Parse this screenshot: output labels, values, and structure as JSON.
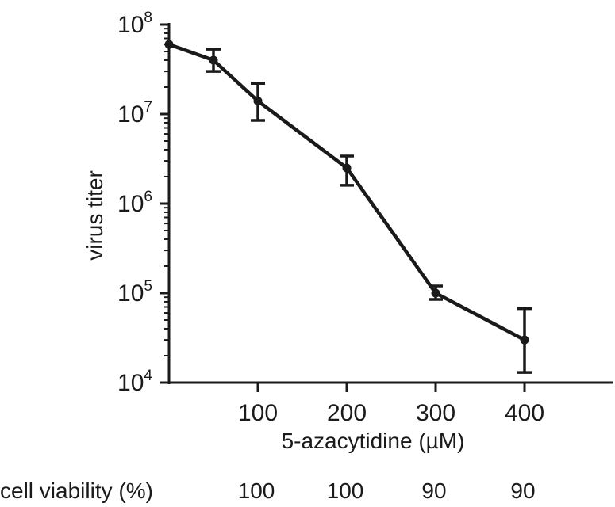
{
  "chart_data": {
    "type": "line",
    "title": "",
    "xlabel": "5-azacytidine (µM)",
    "ylabel": "virus titer",
    "yscale": "log",
    "xlim": [
      0,
      500
    ],
    "ylim": [
      10000,
      100000000
    ],
    "x_ticks": [
      100,
      200,
      300,
      400
    ],
    "y_ticks": [
      {
        "value": 10000,
        "base": "10",
        "exp": "4"
      },
      {
        "value": 100000,
        "base": "10",
        "exp": "5"
      },
      {
        "value": 1000000,
        "base": "10",
        "exp": "6"
      },
      {
        "value": 10000000,
        "base": "10",
        "exp": "7"
      },
      {
        "value": 100000000,
        "base": "10",
        "exp": "8"
      }
    ],
    "grid": false,
    "series": [
      {
        "x": [
          0,
          50,
          100,
          200,
          300,
          400
        ],
        "y": [
          60000000,
          40000000,
          14000000,
          2500000,
          100000,
          30000
        ],
        "err_low": [
          60000000,
          30000000,
          8500000,
          1600000,
          85000,
          13000
        ],
        "err_high": [
          60000000,
          53000000,
          22000000,
          3400000,
          120000,
          67000
        ]
      }
    ],
    "color": "#1a1a1a"
  },
  "footer": {
    "label": "cell viability (%)",
    "values": [
      {
        "x": 100,
        "text": "100"
      },
      {
        "x": 200,
        "text": "100"
      },
      {
        "x": 300,
        "text": "90"
      },
      {
        "x": 400,
        "text": "90"
      }
    ]
  }
}
